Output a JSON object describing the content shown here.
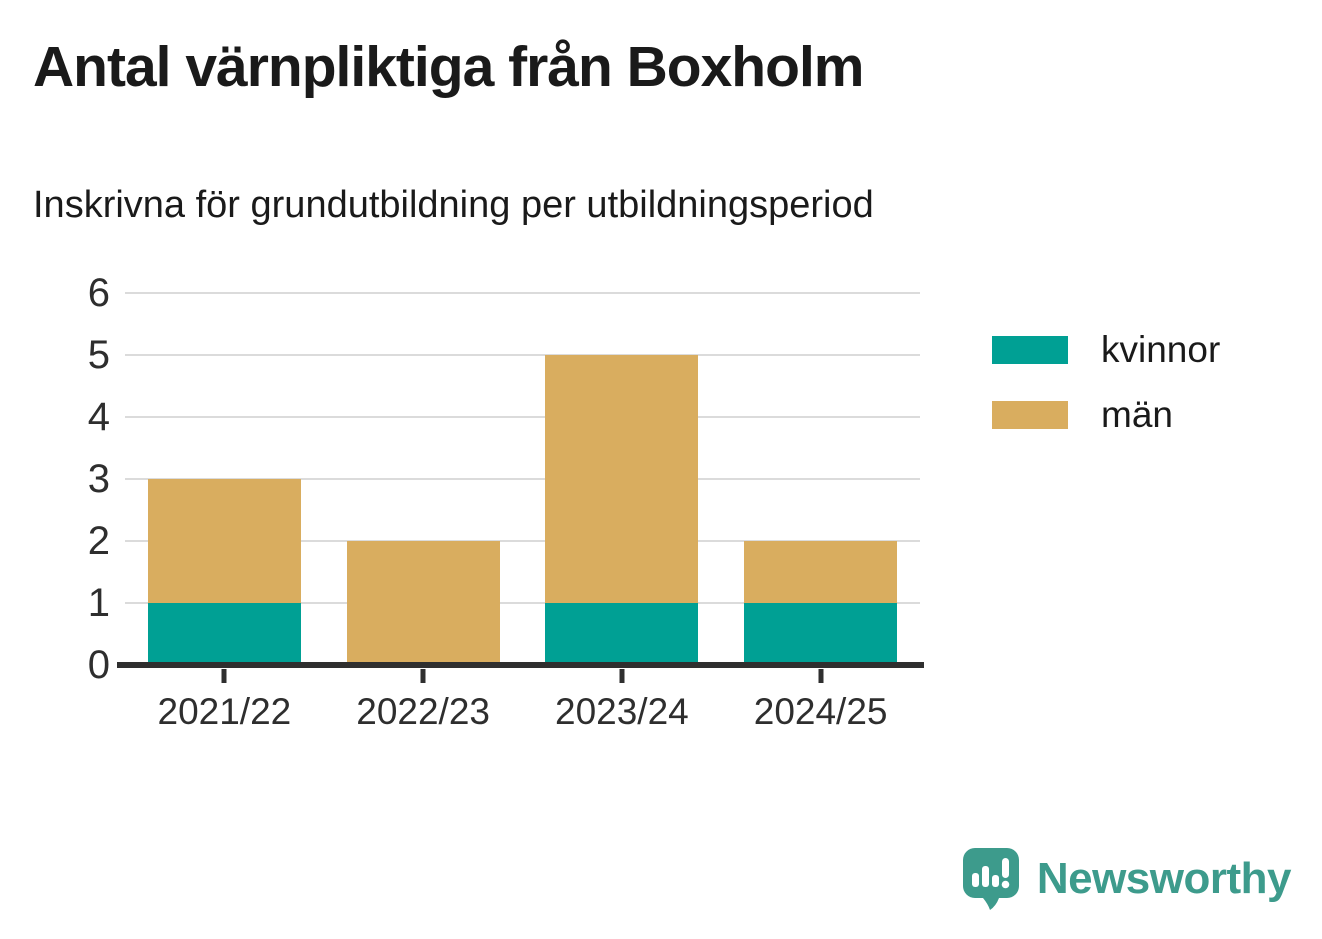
{
  "header": {
    "title": "Antal värnpliktiga från Boxholm",
    "subtitle": "Inskrivna för grundutbildning per utbildningsperiod"
  },
  "chart_data": {
    "type": "bar",
    "stacked": true,
    "title": "Antal värnpliktiga från Boxholm",
    "subtitle": "Inskrivna för grundutbildning per utbildningsperiod",
    "categories": [
      "2021/22",
      "2022/23",
      "2023/24",
      "2024/25"
    ],
    "series": [
      {
        "name": "kvinnor",
        "color": "#00A094",
        "values": [
          1,
          0,
          1,
          1
        ]
      },
      {
        "name": "män",
        "color": "#D9AD5F",
        "values": [
          2,
          2,
          4,
          1
        ]
      }
    ],
    "totals": [
      3,
      2,
      5,
      2
    ],
    "xlabel": "",
    "ylabel": "",
    "ylim": [
      0,
      6
    ],
    "yticks": [
      0,
      1,
      2,
      3,
      4,
      5,
      6
    ],
    "grid": "horizontal",
    "legend_position": "right",
    "legend": [
      "kvinnor",
      "män"
    ]
  },
  "colors": {
    "axis": "#2F2F2F",
    "gridline": "#DBDBDB",
    "title_text": "#1A1A1A",
    "tick_text": "#2E2E2E",
    "brand_teal": "#3D9B8C"
  },
  "footer": {
    "brand": "Newsworthy",
    "logo_icon": "speech-bubble-bar-chart-icon"
  }
}
